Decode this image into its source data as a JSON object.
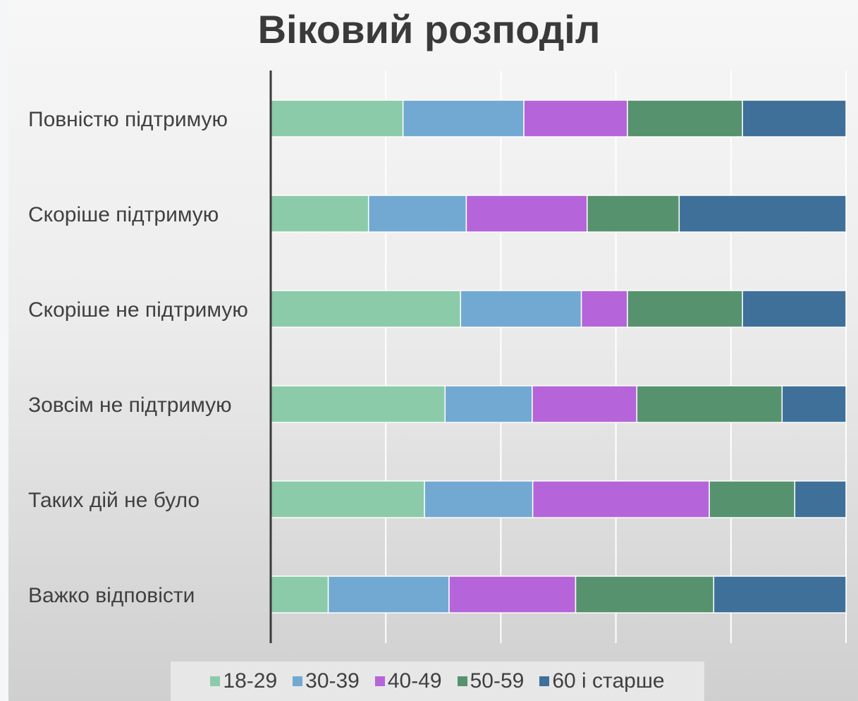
{
  "chart_data": {
    "type": "bar",
    "orientation": "horizontal",
    "stacked": true,
    "title": "Віковий розподіл",
    "categories": [
      "Повністю підтримую",
      "Скоріше підтримую",
      "Скоріше не підтримую",
      "Зовсім не підтримую",
      "Таких дій не було",
      "Важко відповісти"
    ],
    "series": [
      {
        "name": "18-29",
        "color": "#8ccba9",
        "values": [
          23,
          17,
          33,
          30,
          27,
          10
        ]
      },
      {
        "name": "30-39",
        "color": "#72a9d2",
        "values": [
          21,
          17,
          21,
          15,
          19,
          21
        ]
      },
      {
        "name": "40-49",
        "color": "#b565d9",
        "values": [
          18,
          21,
          8,
          18,
          31,
          22
        ]
      },
      {
        "name": "50-59",
        "color": "#57926f",
        "values": [
          20,
          16,
          20,
          25,
          15,
          24
        ]
      },
      {
        "name": "60 і старше",
        "color": "#3f7099",
        "values": [
          18,
          29,
          18,
          11,
          9,
          23
        ]
      }
    ],
    "xlim": [
      0,
      100
    ],
    "grid": true,
    "legend_position": "bottom"
  }
}
